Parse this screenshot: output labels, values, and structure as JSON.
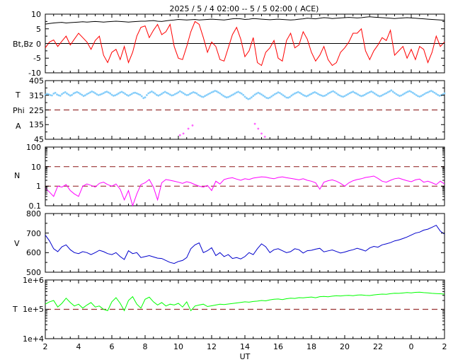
{
  "chart_data": {
    "type": "line",
    "title": "2025 /  5 /  4   02:00 -- 5 /  5   02:00 ( ACE)",
    "xlabel": "UT",
    "x_range_hours": [
      2,
      26
    ],
    "x_tick_labels": [
      "2",
      "4",
      "6",
      "8",
      "10",
      "12",
      "14",
      "16",
      "18",
      "20",
      "22",
      "0",
      "2"
    ],
    "colors": {
      "bt": "#000000",
      "bz": "#ff0000",
      "phi": "#87cefa",
      "phi_alt": "#ff66ff",
      "n": "#ff00ff",
      "v": "#0000cc",
      "t": "#00ff00",
      "ref": "#993333"
    },
    "panels": [
      {
        "id": "mag",
        "ylabel": "Bt,Bz",
        "ylim": [
          -10,
          10
        ],
        "y_ticks": [
          "10",
          "5",
          "0",
          "-5",
          "-10"
        ],
        "series": [
          {
            "name": "Bt",
            "color": "#000000",
            "step": 0.25,
            "values": [
              6.6,
              6.8,
              7.0,
              7.1,
              7.2,
              7.0,
              7.1,
              7.2,
              7.3,
              7.4,
              7.3,
              7.4,
              7.5,
              7.4,
              7.3,
              7.4,
              7.5,
              7.6,
              7.5,
              7.4,
              7.3,
              7.4,
              7.5,
              7.6,
              7.6,
              7.7,
              7.8,
              7.6,
              7.5,
              7.7,
              7.9,
              8.0,
              8.2,
              8.1,
              8.0,
              8.1,
              8.2,
              8.0,
              8.1,
              8.2,
              8.3,
              8.2,
              8.1,
              8.0,
              8.2,
              8.4,
              8.5,
              8.4,
              8.2,
              8.3,
              8.5,
              8.4,
              8.3,
              8.2,
              8.1,
              8.2,
              8.3,
              8.2,
              8.1,
              8.0,
              8.1,
              8.3,
              8.4,
              8.6,
              8.5,
              8.4,
              8.6,
              8.8,
              8.7,
              8.5,
              8.6,
              8.7,
              8.8,
              8.9,
              8.8,
              8.7,
              8.8,
              9.0,
              9.1,
              9.0,
              8.9,
              8.8,
              8.7,
              8.6,
              8.5,
              8.6,
              8.7,
              8.8,
              8.7,
              8.6,
              8.5,
              8.4,
              8.3,
              8.2,
              8.1,
              8.0,
              7.9
            ]
          },
          {
            "name": "Bz",
            "color": "#ff0000",
            "step": 0.25,
            "values": [
              -1.5,
              0.5,
              1.2,
              -1.0,
              0.8,
              2.5,
              -0.5,
              1.5,
              3.5,
              2.0,
              0.5,
              -2.0,
              1.0,
              2.5,
              -4.0,
              -6.5,
              -3.0,
              -2.0,
              -5.5,
              -1.0,
              -6.5,
              -3.0,
              2.5,
              5.5,
              6.0,
              2.0,
              4.5,
              6.5,
              3.0,
              4.0,
              6.5,
              -1.0,
              -5.0,
              -5.5,
              -1.0,
              4.0,
              7.5,
              6.5,
              2.0,
              -3.0,
              0.5,
              -1.0,
              -5.5,
              -6.0,
              -1.5,
              3.0,
              5.5,
              1.5,
              -4.5,
              -2.5,
              2.0,
              -6.5,
              -7.5,
              -3.0,
              -1.5,
              1.0,
              -5.0,
              -6.0,
              1.0,
              3.5,
              -1.5,
              -0.5,
              4.0,
              1.5,
              -3.0,
              -6.0,
              -4.0,
              -1.0,
              -5.5,
              -7.5,
              -6.5,
              -3.0,
              -1.5,
              0.5,
              3.5,
              3.5,
              5.0,
              -2.5,
              -5.5,
              -2.5,
              -0.5,
              2.0,
              1.0,
              4.5,
              -4.0,
              -2.5,
              -1.0,
              -5.0,
              -2.0,
              -5.5,
              -1.0,
              -2.0,
              -6.5,
              -3.0,
              2.5,
              -1.0,
              0.5
            ]
          }
        ]
      },
      {
        "id": "phi",
        "ylabel_top": "T",
        "ylabel_mid": "Phi",
        "ylabel_bottom": "A",
        "ylim": [
          45,
          405
        ],
        "y_ticks": [
          "405",
          "315",
          "225",
          "135",
          "45"
        ],
        "ref_line": 225,
        "series": [
          {
            "name": "Phi",
            "color": "#87cefa",
            "step": 0.1,
            "values": [
              318,
              324,
              321,
              316,
              314,
              325,
              330,
              320,
              315,
              312,
              322,
              329,
              334,
              326,
              319,
              313,
              317,
              326,
              331,
              335,
              331,
              324,
              318,
              311,
              315,
              322,
              327,
              333,
              338,
              334,
              328,
              321,
              316,
              319,
              323,
              328,
              334,
              337,
              332,
              326,
              318,
              312,
              315,
              320,
              326,
              332,
              336,
              331,
              324,
              317,
              312,
              318,
              323,
              329,
              331,
              327,
              322,
              318,
              309,
              298,
              302,
              316,
              327,
              333,
              338,
              332,
              325,
              317,
              313,
              318,
              324,
              331,
              336,
              330,
              325,
              319,
              314,
              316,
              322,
              327,
              333,
              340,
              334,
              328,
              321,
              316,
              318,
              324,
              329,
              334,
              331,
              326,
              318,
              312,
              307,
              305,
              311,
              316,
              322,
              327,
              333,
              337,
              342,
              339,
              333,
              327,
              319,
              312,
              306,
              302,
              304,
              309,
              315,
              320,
              326,
              332,
              336,
              331,
              325,
              317,
              306,
              298,
              292,
              295,
              302,
              311,
              319,
              325,
              331,
              326,
              320,
              313,
              306,
              299,
              297,
              301,
              308,
              315,
              322,
              327,
              333,
              329,
              322,
              315,
              308,
              301,
              300,
              305,
              313,
              320,
              326,
              331,
              335,
              330,
              324,
              317,
              312,
              309,
              313,
              319,
              324,
              330,
              334,
              329,
              323,
              318,
              314,
              310,
              312,
              318,
              325,
              331,
              336,
              340,
              334,
              327,
              319,
              314,
              309,
              306,
              310,
              316,
              322,
              328,
              333,
              337,
              331,
              326,
              320,
              314,
              310,
              313,
              318,
              324,
              329,
              334,
              338,
              333,
              326,
              319,
              313,
              309,
              312,
              318,
              323,
              328,
              334,
              339,
              345,
              337,
              329,
              322,
              316,
              311,
              314,
              320,
              326,
              332,
              337,
              341,
              336,
              330,
              323,
              316,
              310,
              307,
              311,
              317,
              323,
              329,
              333,
              338,
              342,
              337,
              331,
              324,
              317,
              312,
              315,
              321,
              327
            ]
          },
          {
            "name": "Phi-alt",
            "color": "#ff66ff",
            "points": [
              [
                10.1,
                70
              ],
              [
                10.3,
                80
              ],
              [
                10.6,
                110
              ],
              [
                10.85,
                130
              ],
              [
                14.6,
                140
              ],
              [
                14.8,
                110
              ],
              [
                15.0,
                80
              ],
              [
                15.2,
                60
              ]
            ]
          }
        ]
      },
      {
        "id": "n",
        "ylabel": "N",
        "scale": "log",
        "ylim": [
          0.1,
          100
        ],
        "y_ticks": [
          "100",
          "10",
          "1",
          "0.1"
        ],
        "ref_lines": [
          1,
          10
        ],
        "series": [
          {
            "name": "N",
            "color": "#ff00ff",
            "step": 0.25,
            "values": [
              0.8,
              0.5,
              0.3,
              1.0,
              0.9,
              1.2,
              0.6,
              0.4,
              0.3,
              1.0,
              1.3,
              1.1,
              0.9,
              1.4,
              1.6,
              1.2,
              1.0,
              1.3,
              0.7,
              0.2,
              0.6,
              0.1,
              0.4,
              1.2,
              1.5,
              2.2,
              0.9,
              0.2,
              1.5,
              2.2,
              2.0,
              1.8,
              1.6,
              1.4,
              1.7,
              1.5,
              1.2,
              1.0,
              0.9,
              1.1,
              0.6,
              1.8,
              1.3,
              2.2,
              2.5,
              2.7,
              2.3,
              2.0,
              2.4,
              2.2,
              2.6,
              2.8,
              3.0,
              2.9,
              2.6,
              2.4,
              2.8,
              3.0,
              2.7,
              2.5,
              2.3,
              2.1,
              2.4,
              2.0,
              1.8,
              1.5,
              0.7,
              1.6,
              1.9,
              2.1,
              1.8,
              1.4,
              1.0,
              1.5,
              1.9,
              2.2,
              2.4,
              2.8,
              3.0,
              3.3,
              2.5,
              1.8,
              1.6,
              2.0,
              2.4,
              2.6,
              2.2,
              1.9,
              1.7,
              2.1,
              2.3,
              1.6,
              1.8,
              1.5,
              1.2,
              1.8,
              1.3
            ]
          }
        ]
      },
      {
        "id": "v",
        "ylabel": "V",
        "ylim": [
          500,
          800
        ],
        "y_ticks": [
          "800",
          "700",
          "600",
          "500"
        ],
        "series": [
          {
            "name": "V",
            "color": "#0000cc",
            "step": 0.25,
            "values": [
              690,
              660,
              620,
              605,
              630,
              640,
              615,
              600,
              595,
              605,
              600,
              590,
              600,
              612,
              605,
              595,
              590,
              600,
              580,
              565,
              610,
              595,
              600,
              575,
              580,
              585,
              578,
              572,
              570,
              560,
              550,
              545,
              555,
              560,
              575,
              620,
              640,
              650,
              600,
              610,
              625,
              585,
              600,
              580,
              590,
              570,
              575,
              568,
              580,
              600,
              590,
              620,
              645,
              630,
              600,
              615,
              620,
              610,
              600,
              605,
              620,
              615,
              598,
              610,
              612,
              618,
              622,
              604,
              609,
              614,
              606,
              598,
              603,
              610,
              615,
              622,
              616,
              608,
              624,
              632,
              628,
              640,
              645,
              651,
              660,
              665,
              672,
              680,
              690,
              700,
              705,
              715,
              720,
              730,
              740,
              710,
              695
            ]
          }
        ]
      },
      {
        "id": "t",
        "ylabel": "T",
        "scale": "log",
        "ylim": [
          10000,
          1000000
        ],
        "y_ticks": [
          "1e+6",
          "1e+5",
          "1e+4"
        ],
        "ref_line": 100000,
        "series": [
          {
            "name": "Temp",
            "color": "#00ff00",
            "step": 0.25,
            "values": [
              150000,
              180000,
              200000,
              120000,
              160000,
              240000,
              170000,
              130000,
              150000,
              110000,
              140000,
              170000,
              120000,
              130000,
              100000,
              90000,
              180000,
              250000,
              160000,
              90000,
              200000,
              270000,
              150000,
              110000,
              220000,
              260000,
              180000,
              140000,
              170000,
              130000,
              150000,
              140000,
              160000,
              120000,
              180000,
              90000,
              130000,
              140000,
              150000,
              125000,
              132000,
              140000,
              150000,
              145000,
              152000,
              158000,
              165000,
              172000,
              180000,
              175000,
              185000,
              190000,
              200000,
              195000,
              210000,
              220000,
              225000,
              215000,
              230000,
              240000,
              235000,
              250000,
              245000,
              255000,
              262000,
              248000,
              270000,
              275000,
              268000,
              280000,
              290000,
              285000,
              295000,
              300000,
              290000,
              305000,
              310000,
              300000,
              295000,
              310000,
              320000,
              330000,
              325000,
              340000,
              355000,
              350000,
              360000,
              372000,
              365000,
              378000,
              385000,
              370000,
              362000,
              350000,
              345000,
              338000,
              330000
            ]
          }
        ]
      }
    ]
  }
}
